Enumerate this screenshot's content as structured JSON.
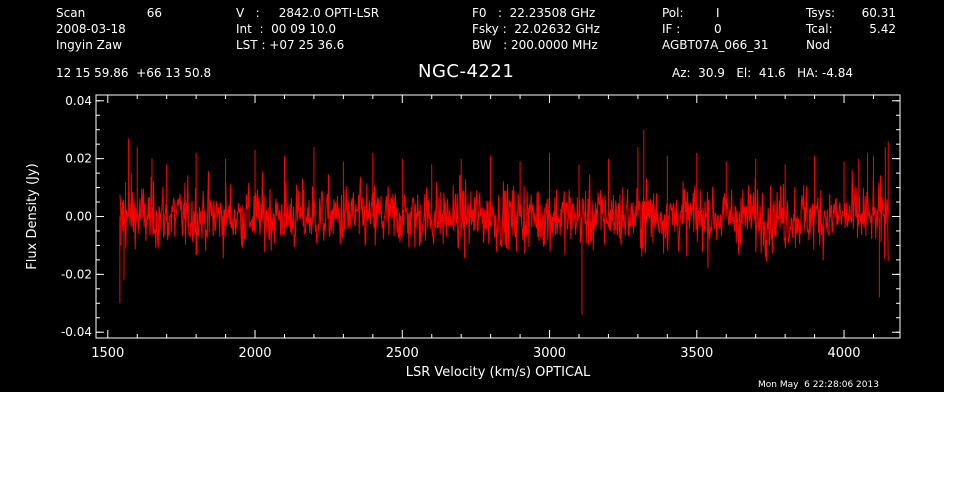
{
  "header": {
    "scan_label": "Scan",
    "scan_value": "66",
    "date": "2008-03-18",
    "observer": "Ingyin Zaw",
    "v_line": "V   :     2842.0 OPTI-LSR",
    "int_line": "Int  :  00 09 10.0",
    "lst_line": "LST : +07 25 36.6",
    "f0_line": "F0   :  22.23508 GHz",
    "fsky_line": "Fsky :  22.02632 GHz",
    "bw_line": "BW   : 200.0000 MHz",
    "pol_label": "Pol:",
    "pol_value": "I",
    "if_label": "IF :",
    "if_value": "0",
    "project": "AGBT07A_066_31",
    "tsys_label": "Tsys:",
    "tsys_value": "60.31",
    "tcal_label": "Tcal:",
    "tcal_value": "5.42",
    "mode": "Nod",
    "coords": "12 15 59.86  +66 13 50.8",
    "source": "NGC-4221",
    "az_el_ha": "Az:  30.9   El:  41.6   HA: -4.84"
  },
  "footer": {
    "timestamp": "Mon May  6 22:28:06 2013"
  },
  "colors": {
    "background": "#000000",
    "axes": "#ffffff",
    "trace": "#ff0000"
  },
  "chart_data": {
    "type": "line",
    "title": "NGC-4221",
    "xlabel": "LSR Velocity (km/s) OPTICAL",
    "ylabel": "Flux Density (Jy)",
    "xlim": [
      1460,
      4190
    ],
    "ylim": [
      -0.042,
      0.042
    ],
    "xticks": [
      1500,
      2000,
      2500,
      3000,
      3500,
      4000
    ],
    "xtick_labels": [
      "1500",
      "2000",
      "2500",
      "3000",
      "3500",
      "4000"
    ],
    "yticks": [
      -0.04,
      -0.02,
      0.0,
      0.02,
      0.04
    ],
    "ytick_labels": [
      "-0.04",
      "-0.02",
      "0.00",
      "0.02",
      "0.04"
    ],
    "grid": false,
    "series": [
      {
        "noise_rms_jy": 0.008,
        "x": [
          1541,
          1545,
          1550,
          1555,
          1560,
          1570,
          1580,
          1600,
          1650,
          1700,
          1800,
          1900,
          2000,
          2100,
          2200,
          2300,
          2400,
          2500,
          2600,
          2700,
          2800,
          2900,
          3000,
          3100,
          3110,
          3200,
          3300,
          3320,
          3400,
          3500,
          3600,
          3700,
          3800,
          3900,
          4000,
          4050,
          4080,
          4100,
          4120,
          4140,
          4150
        ],
        "y": [
          -0.03,
          -0.01,
          0.005,
          -0.022,
          0.012,
          0.027,
          0.015,
          0.024,
          0.02,
          0.018,
          0.022,
          0.02,
          0.023,
          0.021,
          0.024,
          0.019,
          0.022,
          0.02,
          0.018,
          0.02,
          0.021,
          0.019,
          0.022,
          0.018,
          -0.034,
          0.02,
          0.024,
          0.03,
          0.021,
          0.022,
          0.019,
          0.02,
          0.018,
          0.021,
          0.019,
          0.02,
          0.022,
          0.021,
          -0.028,
          0.024,
          0.026
        ]
      }
    ]
  }
}
